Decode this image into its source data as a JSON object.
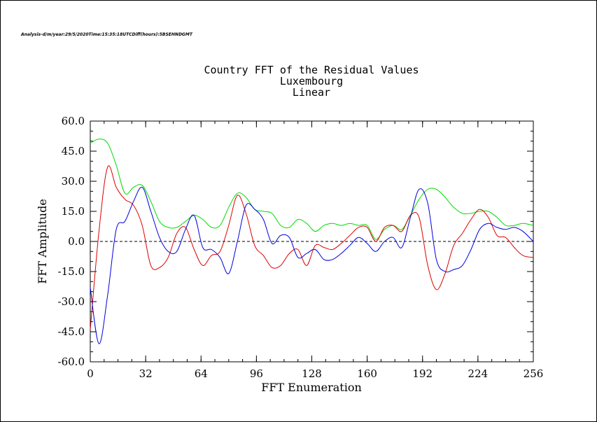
{
  "header": {
    "analysis_line": "Analysis-d/m/year:29/5/2020Time:15:35:18UTCDiff(hours):5BSEHNDGMT"
  },
  "chart_data": {
    "type": "line",
    "title_lines": [
      "Country FFT of the Residual Values",
      "Luxembourg",
      "Linear"
    ],
    "xlabel": "FFT Enumeration",
    "ylabel": "FFT Amplitude",
    "xlim": [
      0,
      256
    ],
    "ylim": [
      -60,
      60
    ],
    "x_ticks": [
      0,
      32,
      64,
      96,
      128,
      160,
      192,
      224,
      256
    ],
    "x_tick_labels": [
      "0",
      "32",
      "64",
      "96",
      "128",
      "160",
      "192",
      "224",
      "256"
    ],
    "y_ticks": [
      60,
      45,
      30,
      15,
      0,
      -15,
      -30,
      -45,
      -60
    ],
    "y_tick_labels": [
      "60.0",
      "45.0",
      "30.0",
      "15.0",
      "0.0",
      "-15.0",
      "-30.0",
      "-45.0",
      "-60.0"
    ],
    "zero_line": "dashed",
    "grid": false,
    "series": [
      {
        "color": "#00dd00",
        "x": [
          0,
          5,
          10,
          15,
          20,
          25,
          30,
          35,
          40,
          45,
          50,
          55,
          60,
          65,
          70,
          75,
          80,
          85,
          90,
          95,
          100,
          105,
          110,
          115,
          120,
          125,
          130,
          135,
          140,
          145,
          150,
          155,
          160,
          165,
          170,
          175,
          180,
          185,
          190,
          195,
          200,
          205,
          210,
          215,
          220,
          225,
          230,
          235,
          240,
          245,
          250,
          256
        ],
        "y": [
          49,
          51,
          49,
          38,
          24,
          27,
          28,
          20,
          10,
          7,
          7,
          10,
          13,
          11,
          7,
          8,
          17,
          24,
          22,
          16,
          15,
          14,
          8,
          7,
          11,
          9,
          5,
          8,
          9,
          8,
          9,
          8,
          8,
          1,
          6,
          8,
          6,
          13,
          21,
          26,
          26,
          22,
          17,
          14,
          14,
          15,
          15,
          12,
          8,
          8,
          9,
          8
        ]
      },
      {
        "color": "#dd0000",
        "x": [
          0,
          5,
          10,
          15,
          20,
          25,
          30,
          35,
          40,
          45,
          50,
          55,
          60,
          65,
          70,
          75,
          80,
          85,
          90,
          95,
          100,
          105,
          110,
          115,
          120,
          125,
          130,
          135,
          140,
          145,
          150,
          155,
          160,
          165,
          170,
          175,
          180,
          185,
          190,
          195,
          200,
          205,
          210,
          215,
          220,
          225,
          230,
          235,
          240,
          245,
          250,
          256
        ],
        "y": [
          -44,
          5,
          37,
          27,
          21,
          18,
          8,
          -12,
          -13,
          -8,
          4,
          7,
          -4,
          -12,
          -7,
          -5,
          8,
          23,
          14,
          -2,
          -7,
          -13,
          -12,
          -6,
          -4,
          -12,
          -2,
          -3,
          -4,
          -1,
          3,
          7,
          7,
          0,
          7,
          8,
          5,
          13,
          12,
          -12,
          -24,
          -16,
          -2,
          4,
          11,
          16,
          12,
          3,
          2,
          -3,
          -7,
          -8
        ]
      },
      {
        "color": "#0000dd",
        "x": [
          0,
          5,
          10,
          15,
          20,
          25,
          30,
          35,
          40,
          45,
          50,
          55,
          60,
          65,
          70,
          75,
          80,
          85,
          90,
          95,
          100,
          105,
          110,
          115,
          120,
          125,
          130,
          135,
          140,
          145,
          150,
          155,
          160,
          165,
          170,
          175,
          180,
          185,
          190,
          195,
          200,
          205,
          210,
          215,
          220,
          225,
          230,
          235,
          240,
          245,
          250,
          256
        ],
        "y": [
          -23,
          -51,
          -27,
          6,
          10,
          20,
          27,
          15,
          2,
          -5,
          -5,
          6,
          13,
          -3,
          -4,
          -8,
          -16,
          0,
          18,
          16,
          11,
          -1,
          3,
          2,
          -8,
          -6,
          -4,
          -9,
          -9,
          -6,
          -2,
          2,
          -1,
          -5,
          0,
          2,
          -3,
          12,
          26,
          19,
          -9,
          -15,
          -14,
          -12,
          -4,
          6,
          9,
          7,
          6,
          7,
          5,
          0
        ]
      }
    ]
  }
}
